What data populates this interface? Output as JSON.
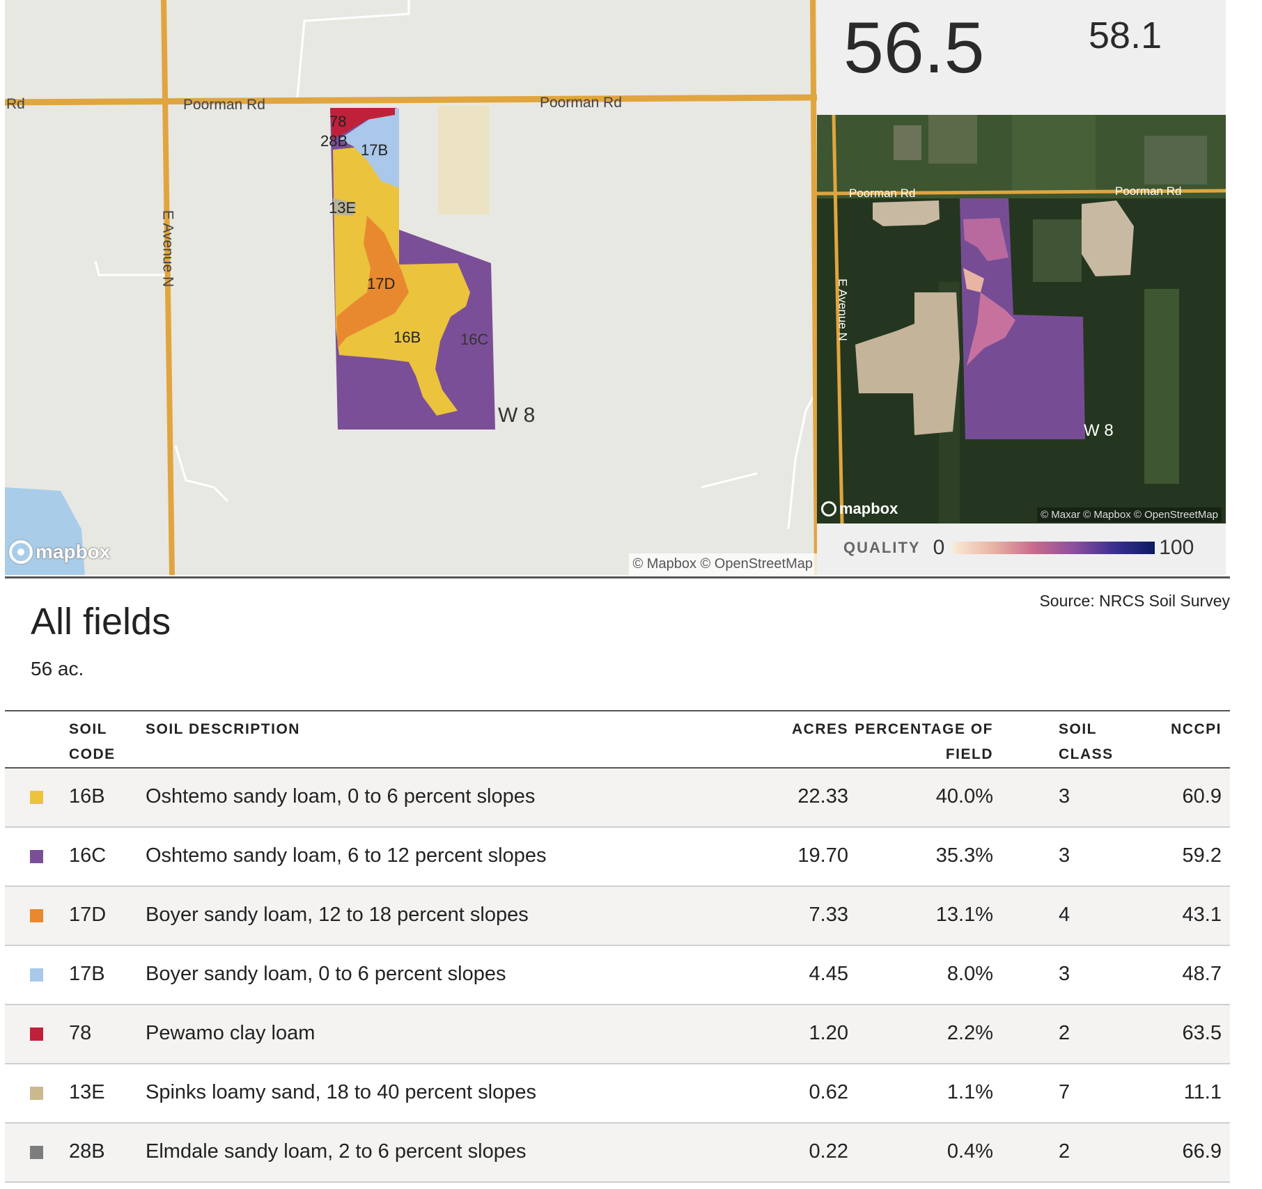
{
  "map": {
    "road_labels": [
      "Rd",
      "Poorman Rd",
      "Poorman Rd",
      "E Avenue N"
    ],
    "soil_labels": [
      "78",
      "28B",
      "17B",
      "13E",
      "17D",
      "16B",
      "16C"
    ],
    "section_label": "W 8",
    "logo_text": "mapbox",
    "attribution": "© Mapbox © OpenStreetMap"
  },
  "satellite": {
    "road_labels": [
      "Poorman Rd",
      "Poorman Rd",
      "E Avenue N"
    ],
    "section_label": "W 8",
    "logo_text": "mapbox",
    "attribution": "© Maxar © Mapbox © OpenStreetMap"
  },
  "scores": {
    "main": "56.5",
    "secondary": "58.1"
  },
  "quality_legend": {
    "label": "QUALITY",
    "min": "0",
    "max": "100"
  },
  "source": "Source: NRCS Soil Survey",
  "page": {
    "title": "All fields",
    "acreage": "56 ac."
  },
  "table": {
    "headers": {
      "soil_code_1": "SOIL",
      "soil_code_2": "CODE",
      "description": "SOIL DESCRIPTION",
      "acres": "ACRES",
      "percentage_1": "PERCENTAGE OF",
      "percentage_2": "FIELD",
      "soil_class_1": "SOIL",
      "soil_class_2": "CLASS",
      "nccpi": "NCCPI"
    },
    "rows": [
      {
        "color": "#ebc33d",
        "code": "16B",
        "description": "Oshtemo sandy loam, 0 to 6 percent slopes",
        "acres": "22.33",
        "percentage": "40.0%",
        "soil_class": "3",
        "nccpi": "60.9"
      },
      {
        "color": "#7b4f97",
        "code": "16C",
        "description": "Oshtemo sandy loam, 6 to 12 percent slopes",
        "acres": "19.70",
        "percentage": "35.3%",
        "soil_class": "3",
        "nccpi": "59.2"
      },
      {
        "color": "#e8892f",
        "code": "17D",
        "description": "Boyer sandy loam, 12 to 18 percent slopes",
        "acres": "7.33",
        "percentage": "13.1%",
        "soil_class": "4",
        "nccpi": "43.1"
      },
      {
        "color": "#a9c8ea",
        "code": "17B",
        "description": "Boyer sandy loam, 0 to 6 percent slopes",
        "acres": "4.45",
        "percentage": "8.0%",
        "soil_class": "3",
        "nccpi": "48.7"
      },
      {
        "color": "#c0213a",
        "code": "78",
        "description": "Pewamo clay loam",
        "acres": "1.20",
        "percentage": "2.2%",
        "soil_class": "2",
        "nccpi": "63.5"
      },
      {
        "color": "#c9b98d",
        "code": "13E",
        "description": "Spinks loamy sand, 18 to 40 percent slopes",
        "acres": "0.62",
        "percentage": "1.1%",
        "soil_class": "7",
        "nccpi": "11.1"
      },
      {
        "color": "#7d7d7d",
        "code": "28B",
        "description": "Elmdale sandy loam, 2 to 6 percent slopes",
        "acres": "0.22",
        "percentage": "0.4%",
        "soil_class": "2",
        "nccpi": "66.9"
      }
    ]
  },
  "colors": {
    "road": "#e0a53f",
    "map_background": "#e8e8e3",
    "water": "#a9cde9"
  }
}
